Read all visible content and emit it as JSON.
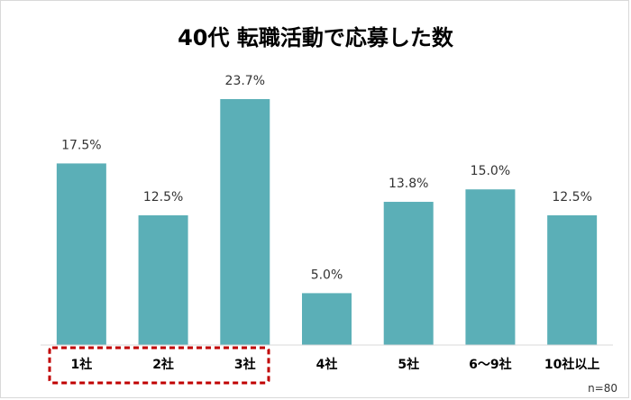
{
  "chart_data": {
    "type": "bar",
    "title": "40代 転職活動で応募した数",
    "categories": [
      "1社",
      "2社",
      "3社",
      "4社",
      "5社",
      "6～9社",
      "10社以上"
    ],
    "values": [
      17.5,
      12.5,
      23.7,
      5.0,
      13.8,
      15.0,
      12.5
    ],
    "value_labels": [
      "17.5%",
      "12.5%",
      "23.7%",
      "5.0%",
      "13.8%",
      "15.0%",
      "12.5%"
    ],
    "ylim": [
      0,
      25
    ],
    "grid": false,
    "note": "n=80",
    "colors": {
      "bar": "#5bafb7",
      "highlight": "#c00000",
      "axis": "#d9d9d9"
    }
  }
}
